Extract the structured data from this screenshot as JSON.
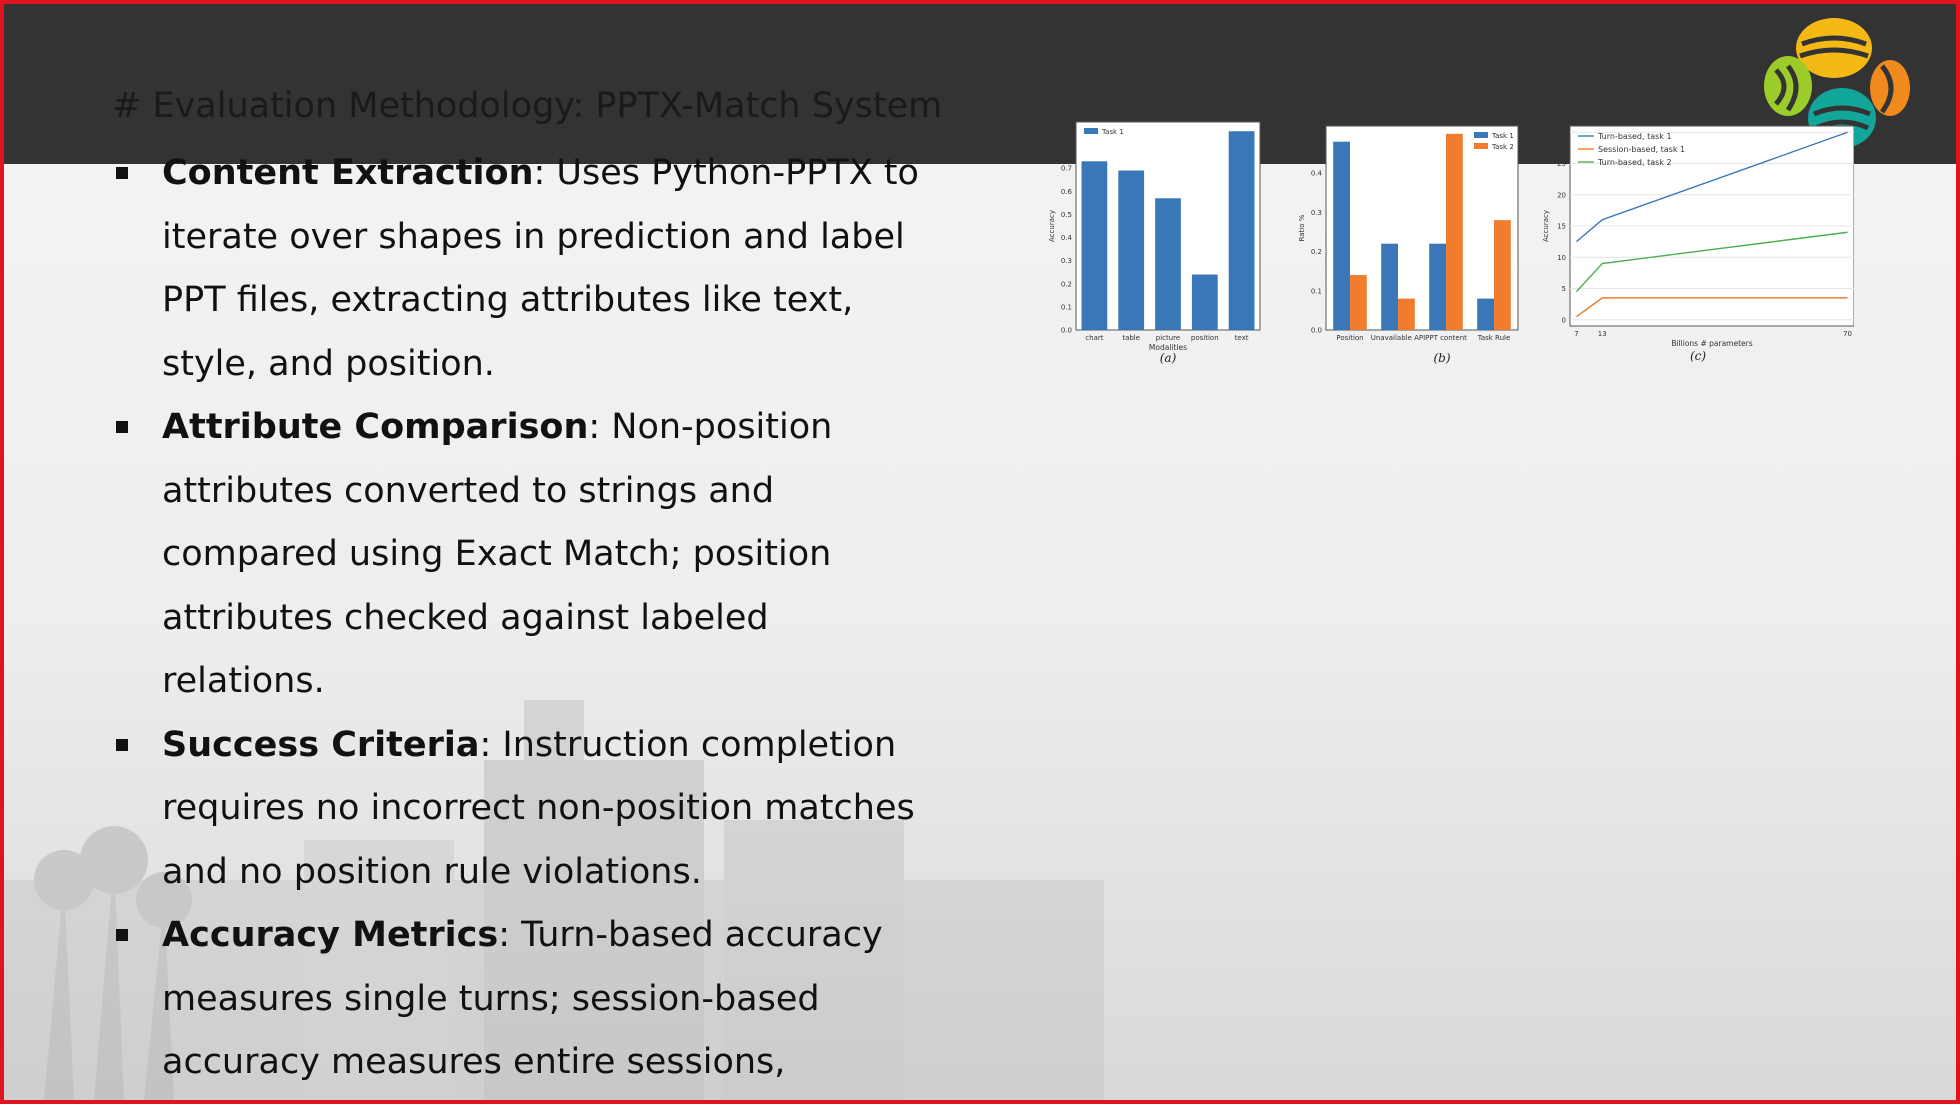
{
  "slide": {
    "title": "# Evaluation Methodology: PPTX-Match System",
    "bullets": [
      {
        "term": "Content Extraction",
        "text": ": Uses Python-PPTX to iterate over shapes in prediction and label PPT files, extracting attributes like text, style, and position."
      },
      {
        "term": "Attribute Comparison",
        "text": ": Non-position attributes converted to strings and compared using Exact Match; position attributes checked against labeled relations."
      },
      {
        "term": "Success Criteria",
        "text": ": Instruction completion requires no incorrect non-position matches and no position rule violations."
      },
      {
        "term": "Accuracy Metrics",
        "text": ": Turn-based accuracy measures single turns; session-based accuracy measures entire sessions, accounting for error accumulation."
      }
    ]
  },
  "colors": {
    "border": "#e0141e",
    "topbar": "#333333",
    "blue": "#3a77b8",
    "orange": "#ef7d2d",
    "green": "#4caf50"
  },
  "chart_data": [
    {
      "type": "bar",
      "caption": "(a)",
      "categories": [
        "chart",
        "table",
        "picture",
        "position",
        "text"
      ],
      "series": [
        {
          "name": "Task 1",
          "values": [
            0.73,
            0.69,
            0.57,
            0.24,
            0.86
          ]
        }
      ],
      "xlabel": "Modalities",
      "ylabel": "Accuracy",
      "ylim": [
        0,
        0.9
      ],
      "yticks": [
        "0.0",
        "0.1",
        "0.2",
        "0.3",
        "0.4",
        "0.5",
        "0.6",
        "0.7",
        "0.8"
      ],
      "legend": "top-left"
    },
    {
      "type": "bar",
      "caption": "(b)",
      "categories": [
        "Position",
        "Unavailable API",
        "PPT content",
        "Task Rule"
      ],
      "series": [
        {
          "name": "Task 1",
          "values": [
            0.48,
            0.22,
            0.22,
            0.08
          ]
        },
        {
          "name": "Task 2",
          "values": [
            0.14,
            0.08,
            0.5,
            0.28
          ]
        }
      ],
      "xlabel": "",
      "ylabel": "Ratio %",
      "ylim": [
        0,
        0.52
      ],
      "yticks": [
        "0.0",
        "0.1",
        "0.2",
        "0.3",
        "0.4",
        "0.5"
      ],
      "legend": "top-right"
    },
    {
      "type": "line",
      "caption": "(c)",
      "x": [
        7,
        13,
        70
      ],
      "xticks": [
        "7",
        "13",
        "70"
      ],
      "series": [
        {
          "name": "Turn-based, task 1",
          "values": [
            12.5,
            16,
            30
          ]
        },
        {
          "name": "Session-based, task 1",
          "values": [
            0.5,
            3.5,
            3.5
          ]
        },
        {
          "name": "Turn-based, task 2",
          "values": [
            4.5,
            9,
            14
          ]
        }
      ],
      "xlabel": "Billions # parameters",
      "ylabel": "Accuracy",
      "ylim": [
        -1,
        31
      ],
      "yticks": [
        "0",
        "5",
        "10",
        "15",
        "20",
        "25",
        "30"
      ],
      "legend": "top-left"
    }
  ]
}
